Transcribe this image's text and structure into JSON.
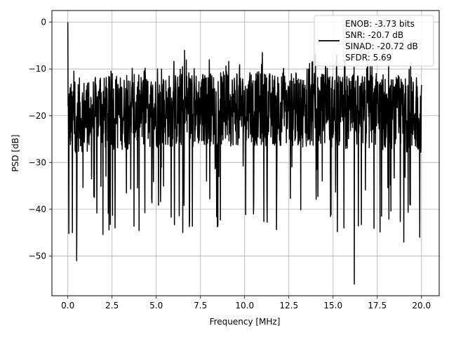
{
  "chart_data": {
    "type": "line",
    "title": "",
    "xlabel": "Frequency [MHz]",
    "ylabel": "PSD [dB]",
    "xlim": [
      -0.9,
      21.0
    ],
    "ylim": [
      -58.5,
      2.5
    ],
    "xticks": [
      0,
      2.5,
      5,
      7.5,
      10,
      12.5,
      15,
      17.5,
      20
    ],
    "xtick_labels": [
      "0.0",
      "2.5",
      "5.0",
      "7.5",
      "10.0",
      "12.5",
      "15.0",
      "17.5",
      "20.0"
    ],
    "yticks": [
      0,
      -10,
      -20,
      -30,
      -40,
      -50
    ],
    "ytick_labels": [
      "0",
      "−10",
      "−20",
      "−30",
      "−40",
      "−50"
    ],
    "grid": true,
    "legend": {
      "placement": "top-right",
      "entries": [
        "ENOB: -3.73 bits",
        "SNR: -20.7 dB",
        "SINAD: -20.72 dB",
        "SFDR: 5.69"
      ]
    },
    "line_color": "#000000",
    "series": [
      {
        "x_start": 0.0,
        "x_end": 20.0,
        "baseline_db": -20.0,
        "noise_floor_db": [
          -28,
          -12
        ],
        "notable_points": [
          {
            "x": 0.0,
            "y": 0.0
          },
          {
            "x": 0.05,
            "y": -45.2
          },
          {
            "x": 0.25,
            "y": -45.0
          },
          {
            "x": 0.5,
            "y": -51.0
          },
          {
            "x": 6.5,
            "y": -45.0
          },
          {
            "x": 16.2,
            "y": -56.0
          },
          {
            "x": 19.0,
            "y": -47.0
          },
          {
            "x": 19.9,
            "y": -46.0
          },
          {
            "x": 6.6,
            "y": -6.0
          },
          {
            "x": 11.0,
            "y": -6.5
          },
          {
            "x": 14.0,
            "y": -6.8
          },
          {
            "x": 15.2,
            "y": -7.0
          }
        ]
      }
    ]
  }
}
